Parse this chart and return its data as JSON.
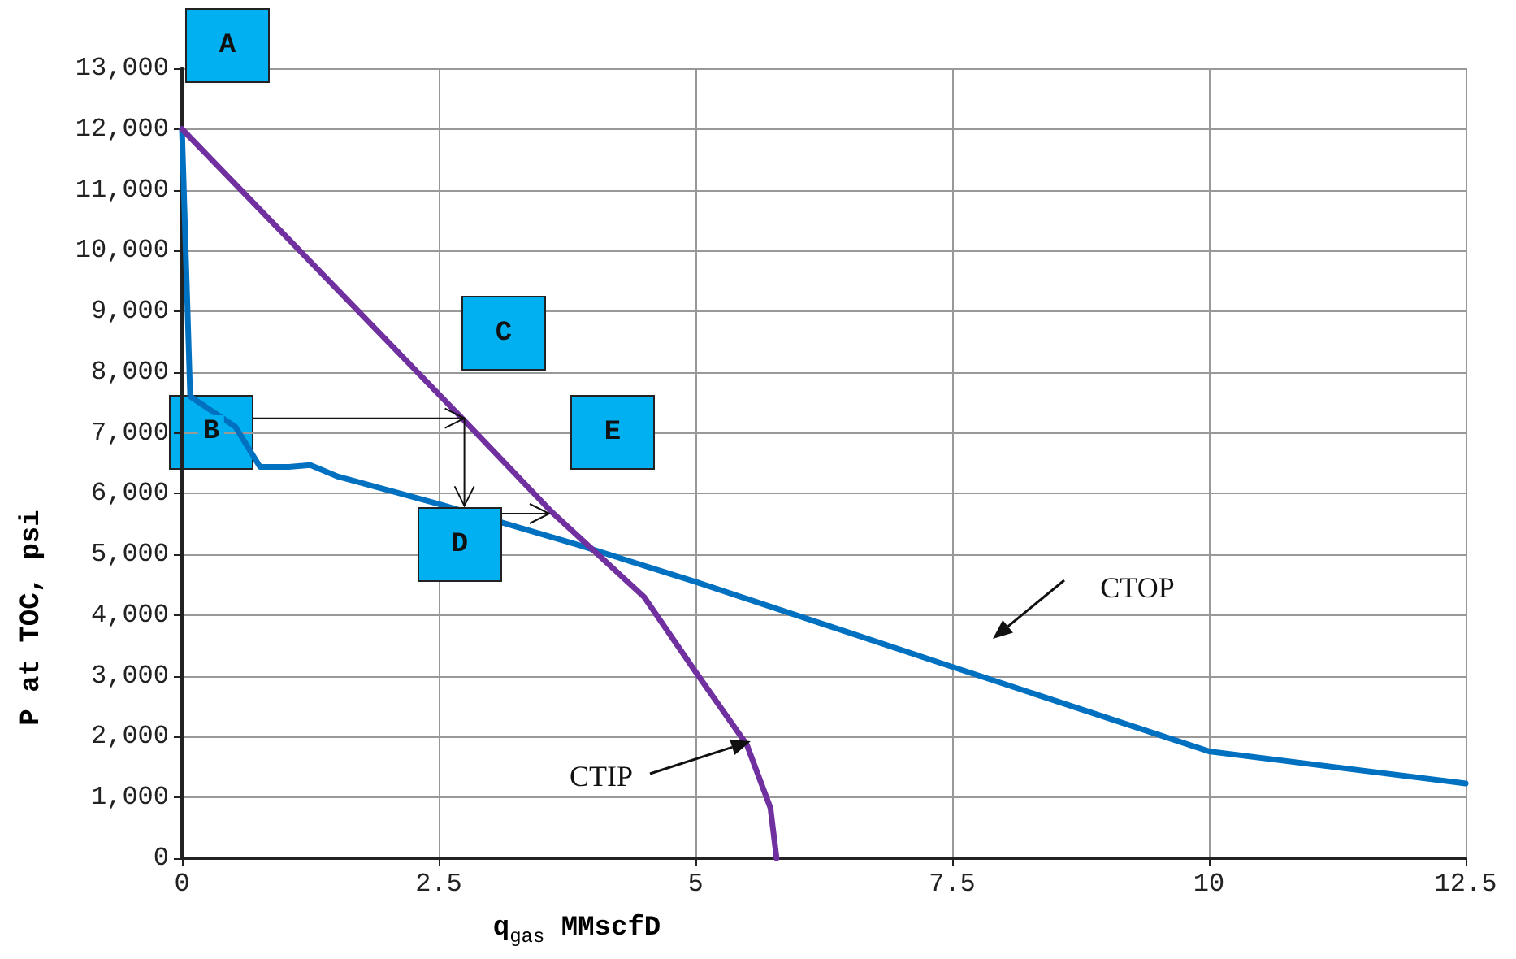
{
  "chart_data": {
    "type": "line",
    "xlabel": "q$_{gas}$ MMscfD",
    "ylabel": "P at TOC, psi",
    "xlim": [
      0,
      12.5
    ],
    "xticks": [
      0,
      2.5,
      5,
      7.5,
      10,
      12.5
    ],
    "ylim": [
      0,
      13000
    ],
    "yticks": [
      {
        "value": 0,
        "label": "0"
      },
      {
        "value": 1000,
        "label": "1,000"
      },
      {
        "value": 2000,
        "label": "2,000"
      },
      {
        "value": 3000,
        "label": "3,000"
      },
      {
        "value": 4000,
        "label": "4,000"
      },
      {
        "value": 5000,
        "label": "5,000"
      },
      {
        "value": 6000,
        "label": "6,000"
      },
      {
        "value": 7000,
        "label": "7,000"
      },
      {
        "value": 8000,
        "label": "8,000"
      },
      {
        "value": 9000,
        "label": "9,000"
      },
      {
        "value": 10000,
        "label": "10,000"
      },
      {
        "value": 11000,
        "label": "11,000"
      },
      {
        "value": 12000,
        "label": "12,000"
      },
      {
        "value": 13000,
        "label": "13,000"
      }
    ],
    "grid": true,
    "marker": "none",
    "line_style": "solid",
    "series": [
      {
        "color": "#0070c0",
        "x": [
          0,
          0.08,
          0.52,
          0.76,
          1.04,
          1.25,
          1.52,
          2.5,
          3.85,
          5,
          7.5,
          10,
          12.5
        ],
        "values": [
          12000,
          7600,
          7100,
          6440,
          6440,
          6470,
          6280,
          5830,
          5160,
          4550,
          3150,
          1760,
          1230
        ]
      },
      {
        "color": "#7030a0",
        "x": [
          0,
          2.75,
          3.6,
          4.5,
          5,
          5.5,
          5.73,
          5.79
        ],
        "values": [
          12000,
          7200,
          5700,
          4300,
          3070,
          1870,
          830,
          0
        ]
      }
    ],
    "annotations": [
      "A",
      {
        "text": "B",
        "x": 2.75,
        "y": 7240
      },
      "C",
      {
        "text": "D",
        "x": 2.75,
        "y": 5800
      },
      "E",
      "CTOP",
      "CTIP"
    ]
  }
}
